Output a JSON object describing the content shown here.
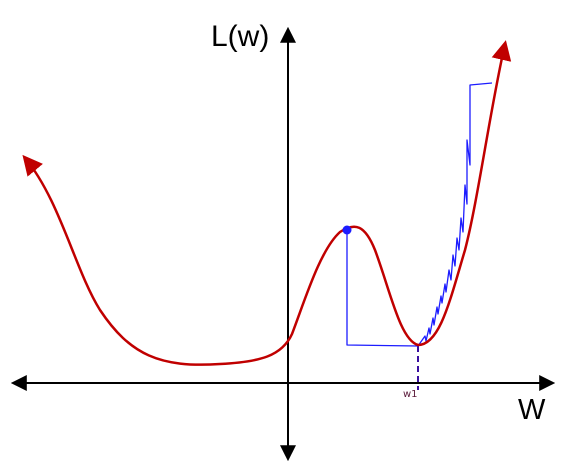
{
  "diagram": {
    "y_axis_label": "L(w)",
    "x_axis_label": "W",
    "minimum_label": "w1",
    "colors": {
      "loss_curve": "#c00000",
      "descent_path": "#1c1cff",
      "start_point": "#1c1cff",
      "axes": "#000000",
      "minimum_marker": "#3a0fa0",
      "minimum_label": "#5a1a3a"
    }
  }
}
